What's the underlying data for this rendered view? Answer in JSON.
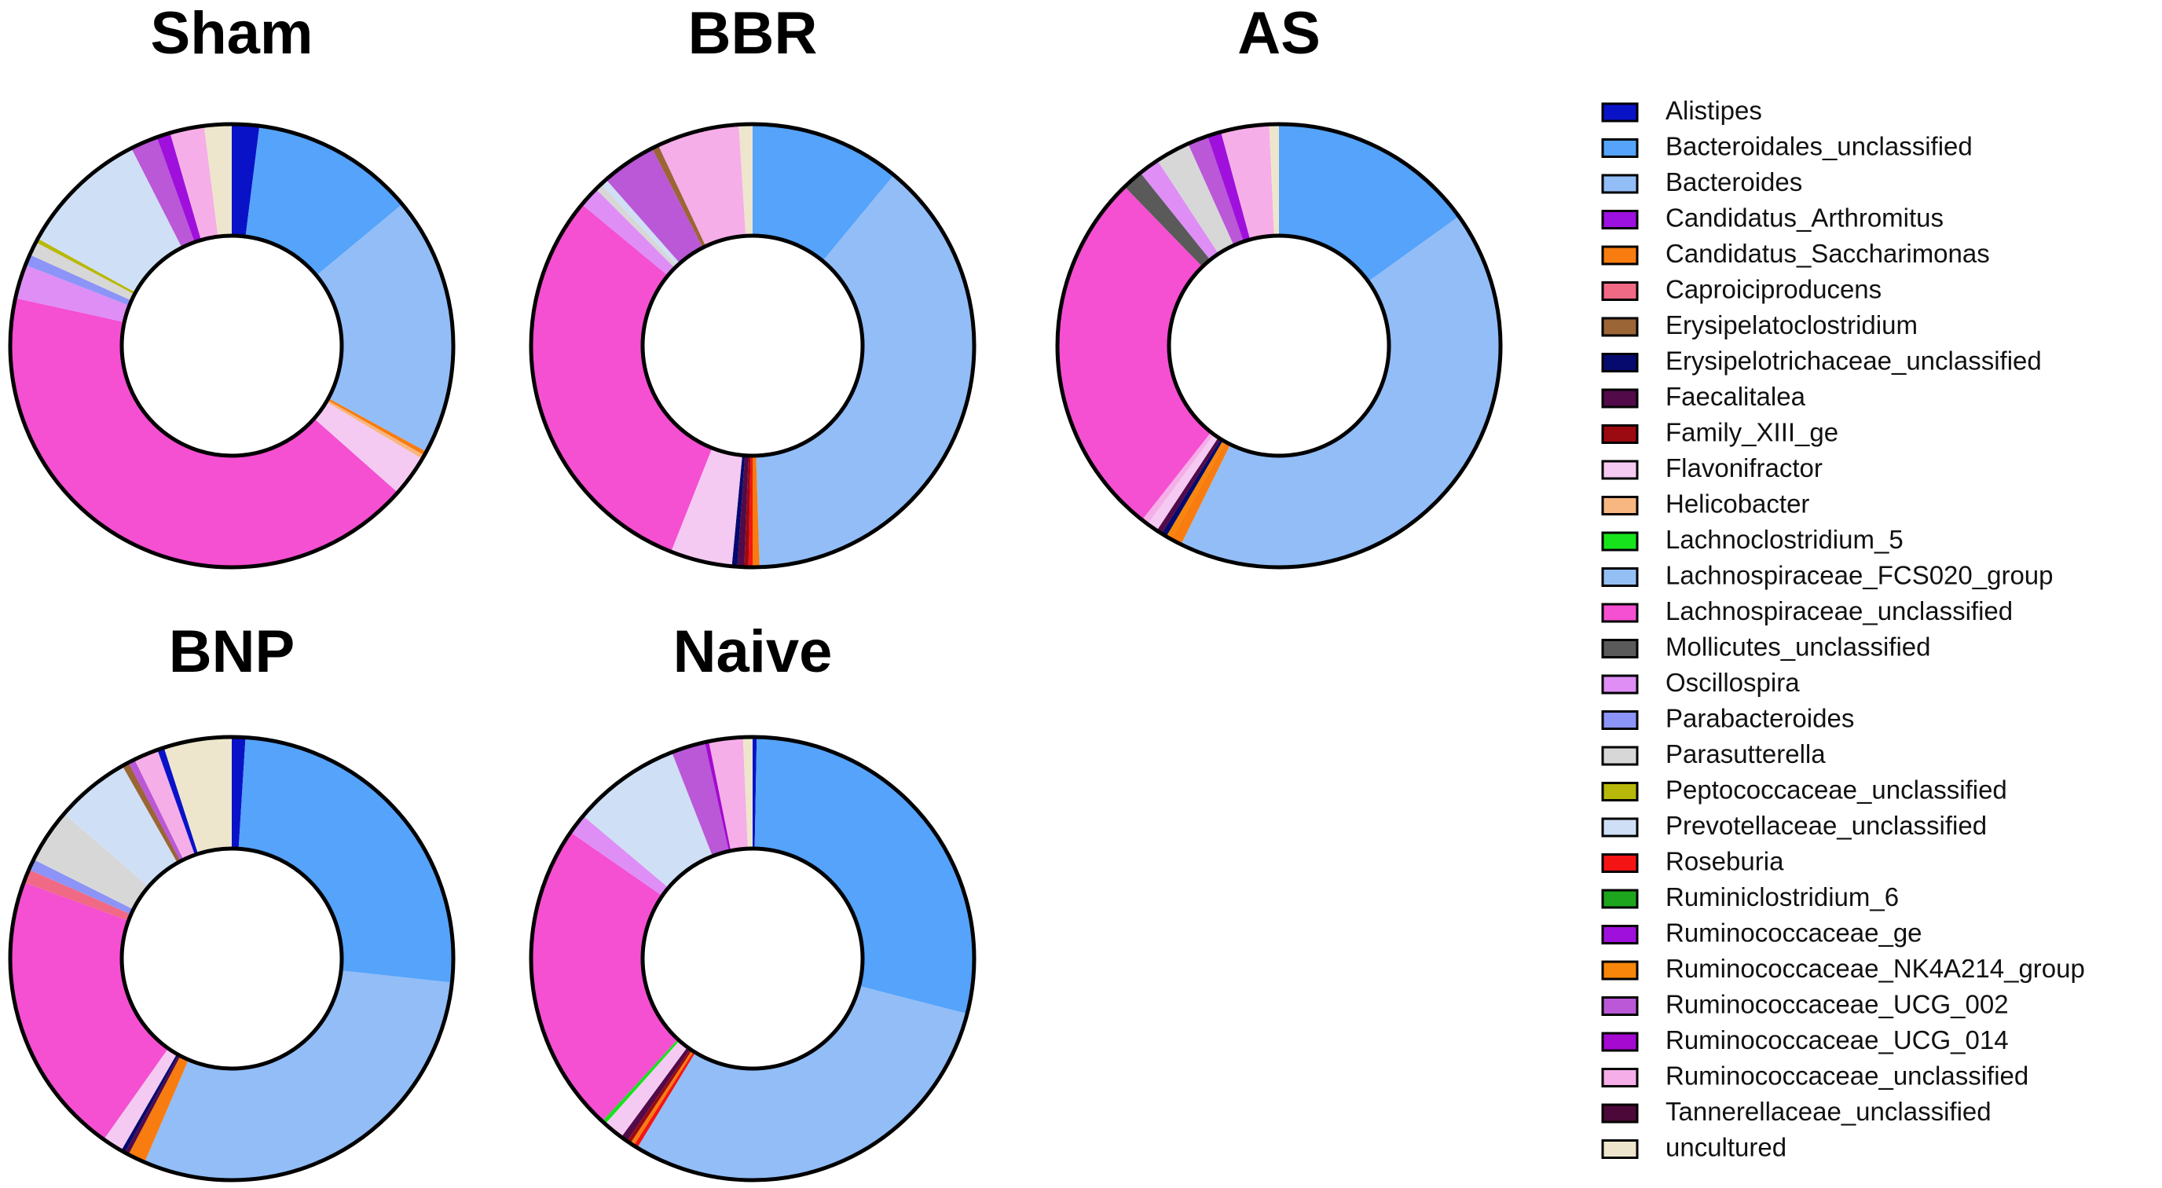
{
  "legend": [
    {
      "label": "Alistipes",
      "color": "#0a12c8"
    },
    {
      "label": "Bacteroidales_unclassified",
      "color": "#55a3fa"
    },
    {
      "label": "Bacteroides",
      "color": "#92bdf7"
    },
    {
      "label": "Candidatus_Arthromitus",
      "color": "#9c10e0"
    },
    {
      "label": "Candidatus_Saccharimonas",
      "color": "#f87c10"
    },
    {
      "label": "Caproiciproducens",
      "color": "#f06a86"
    },
    {
      "label": "Erysipelatoclostridium",
      "color": "#9b6536"
    },
    {
      "label": "Erysipelotrichaceae_unclassified",
      "color": "#060a6e"
    },
    {
      "label": "Faecalitalea",
      "color": "#520a48"
    },
    {
      "label": "Family_XIII_ge",
      "color": "#9a0a10"
    },
    {
      "label": "Flavonifractor",
      "color": "#f4caf2"
    },
    {
      "label": "Helicobacter",
      "color": "#f8b680"
    },
    {
      "label": "Lachnoclostridium_5",
      "color": "#16e31c"
    },
    {
      "label": "Lachnospiraceae_FCS020_group",
      "color": "#94bff4"
    },
    {
      "label": "Lachnospiraceae_unclassified",
      "color": "#f54fd2"
    },
    {
      "label": "Mollicutes_unclassified",
      "color": "#5a5a5a"
    },
    {
      "label": "Oscillospira",
      "color": "#de8ef5"
    },
    {
      "label": "Parabacteroides",
      "color": "#8c94f8"
    },
    {
      "label": "Parasutterella",
      "color": "#d7d7d7"
    },
    {
      "label": "Peptococcaceae_unclassified",
      "color": "#b8b80a"
    },
    {
      "label": "Prevotellaceae_unclassified",
      "color": "#cfe0f6"
    },
    {
      "label": "Roseburia",
      "color": "#f41414"
    },
    {
      "label": "Ruminiclostridium_6",
      "color": "#1ea51e"
    },
    {
      "label": "Ruminococcaceae_ge",
      "color": "#a010dc"
    },
    {
      "label": "Ruminococcaceae_NK4A214_group",
      "color": "#f8860a"
    },
    {
      "label": "Ruminococcaceae_UCG_002",
      "color": "#ba58d8"
    },
    {
      "label": "Ruminococcaceae_UCG_014",
      "color": "#a40ad0"
    },
    {
      "label": "Ruminococcaceae_unclassified",
      "color": "#f6aee8"
    },
    {
      "label": "Tannerellaceae_unclassified",
      "color": "#4c0838"
    },
    {
      "label": "uncultured",
      "color": "#ede6cc"
    }
  ],
  "chart_data": [
    {
      "type": "pie",
      "title": "Sham",
      "series": [
        {
          "label": "Alistipes",
          "value": 2.0
        },
        {
          "label": "Bacteroidales_unclassified",
          "value": 12.0
        },
        {
          "label": "Bacteroides",
          "value": 19.0
        },
        {
          "label": "Candidatus_Saccharimonas",
          "value": 0.3
        },
        {
          "label": "Helicobacter",
          "value": 0.3
        },
        {
          "label": "Flavonifractor",
          "value": 3.0
        },
        {
          "label": "Lachnospiraceae_unclassified",
          "value": 42.0
        },
        {
          "label": "Oscillospira",
          "value": 2.5
        },
        {
          "label": "Parabacteroides",
          "value": 0.8
        },
        {
          "label": "Parasutterella",
          "value": 1.0
        },
        {
          "label": "Peptococcaceae_unclassified",
          "value": 0.3
        },
        {
          "label": "Prevotellaceae_unclassified",
          "value": 9.5
        },
        {
          "label": "Ruminococcaceae_UCG_002",
          "value": 2.0
        },
        {
          "label": "Ruminococcaceae_ge",
          "value": 1.0
        },
        {
          "label": "Ruminococcaceae_unclassified",
          "value": 2.5
        },
        {
          "label": "uncultured",
          "value": 2.0
        }
      ]
    },
    {
      "type": "pie",
      "title": "BBR",
      "series": [
        {
          "label": "Bacteroidales_unclassified",
          "value": 11.0
        },
        {
          "label": "Bacteroides",
          "value": 38.5
        },
        {
          "label": "Candidatus_Saccharimonas",
          "value": 0.5
        },
        {
          "label": "Roseburia",
          "value": 0.3
        },
        {
          "label": "Family_XIII_ge",
          "value": 0.3
        },
        {
          "label": "Faecalitalea",
          "value": 0.5
        },
        {
          "label": "Erysipelotrichaceae_unclassified",
          "value": 0.4
        },
        {
          "label": "Flavonifractor",
          "value": 4.5
        },
        {
          "label": "Lachnospiraceae_unclassified",
          "value": 30.0
        },
        {
          "label": "Oscillospira",
          "value": 1.5
        },
        {
          "label": "Parasutterella",
          "value": 0.5
        },
        {
          "label": "Prevotellaceae_unclassified",
          "value": 0.5
        },
        {
          "label": "Ruminococcaceae_UCG_002",
          "value": 4.0
        },
        {
          "label": "Erysipelatoclostridium",
          "value": 0.5
        },
        {
          "label": "Ruminococcaceae_unclassified",
          "value": 6.0
        },
        {
          "label": "uncultured",
          "value": 1.0
        }
      ]
    },
    {
      "type": "pie",
      "title": "AS",
      "series": [
        {
          "label": "Bacteroidales_unclassified",
          "value": 15.0
        },
        {
          "label": "Bacteroides",
          "value": 42.0
        },
        {
          "label": "Candidatus_Saccharimonas",
          "value": 0.8
        },
        {
          "label": "Ruminococcaceae_NK4A214_group",
          "value": 0.4
        },
        {
          "label": "Erysipelotrichaceae_unclassified",
          "value": 0.4
        },
        {
          "label": "Faecalitalea",
          "value": 0.4
        },
        {
          "label": "Flavonifractor",
          "value": 0.8
        },
        {
          "label": "Ruminococcaceae_unclassified",
          "value": 0.5
        },
        {
          "label": "Lachnospiraceae_unclassified",
          "value": 27.0
        },
        {
          "label": "Mollicutes_unclassified",
          "value": 1.5
        },
        {
          "label": "Oscillospira",
          "value": 1.5
        },
        {
          "label": "Parasutterella",
          "value": 2.5
        },
        {
          "label": "Ruminococcaceae_UCG_002",
          "value": 1.5
        },
        {
          "label": "Ruminococcaceae_ge",
          "value": 1.0
        },
        {
          "label": "Ruminococcaceae_unclassified",
          "value": 3.5
        },
        {
          "label": "uncultured",
          "value": 0.7
        }
      ]
    },
    {
      "type": "pie",
      "title": "BNP",
      "series": [
        {
          "label": "Alistipes",
          "value": 1.0
        },
        {
          "label": "Bacteroidales_unclassified",
          "value": 26.0
        },
        {
          "label": "Bacteroides",
          "value": 30.0
        },
        {
          "label": "Candidatus_Saccharimonas",
          "value": 1.3
        },
        {
          "label": "Faecalitalea",
          "value": 0.3
        },
        {
          "label": "Erysipelotrichaceae_unclassified",
          "value": 0.3
        },
        {
          "label": "Flavonifractor",
          "value": 1.5
        },
        {
          "label": "Lachnospiraceae_unclassified",
          "value": 21.0
        },
        {
          "label": "Caproiciproducens",
          "value": 1.0
        },
        {
          "label": "Parabacteroides",
          "value": 0.8
        },
        {
          "label": "Parasutterella",
          "value": 4.0
        },
        {
          "label": "Prevotellaceae_unclassified",
          "value": 5.5
        },
        {
          "label": "Erysipelatoclostridium",
          "value": 0.5
        },
        {
          "label": "Ruminococcaceae_UCG_002",
          "value": 0.5
        },
        {
          "label": "Ruminococcaceae_unclassified",
          "value": 1.8
        },
        {
          "label": "Alistipes",
          "value": 0.5
        },
        {
          "label": "uncultured",
          "value": 5.0
        }
      ]
    },
    {
      "type": "pie",
      "title": "Naive",
      "series": [
        {
          "label": "Alistipes",
          "value": 0.3
        },
        {
          "label": "Bacteroidales_unclassified",
          "value": 29.0
        },
        {
          "label": "Bacteroides",
          "value": 30.0
        },
        {
          "label": "Roseburia",
          "value": 0.3
        },
        {
          "label": "Candidatus_Saccharimonas",
          "value": 0.3
        },
        {
          "label": "Family_XIII_ge",
          "value": 0.3
        },
        {
          "label": "Faecalitalea",
          "value": 0.5
        },
        {
          "label": "Flavonifractor",
          "value": 1.5
        },
        {
          "label": "Lachnoclostridium_5",
          "value": 0.3
        },
        {
          "label": "Lachnospiraceae_unclassified",
          "value": 23.0
        },
        {
          "label": "Oscillospira",
          "value": 1.5
        },
        {
          "label": "Prevotellaceae_unclassified",
          "value": 8.0
        },
        {
          "label": "Ruminococcaceae_UCG_002",
          "value": 2.5
        },
        {
          "label": "Ruminococcaceae_UCG_014",
          "value": 0.3
        },
        {
          "label": "Ruminococcaceae_unclassified",
          "value": 2.5
        },
        {
          "label": "uncultured",
          "value": 0.7
        }
      ]
    }
  ]
}
